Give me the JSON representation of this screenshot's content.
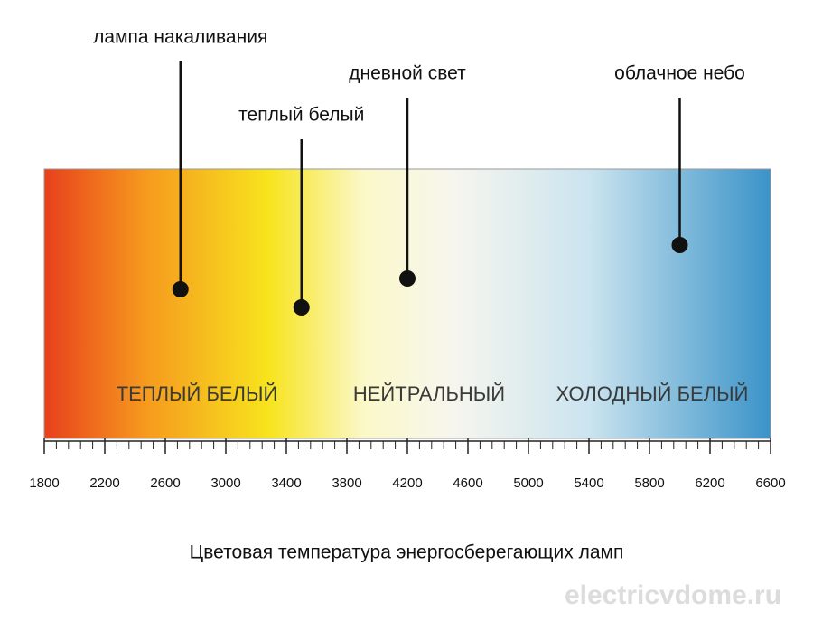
{
  "chart_data": {
    "type": "scale",
    "title": "Цветовая температура энергосберегающих ламп",
    "xlim": [
      1800,
      6600
    ],
    "xticks": [
      1800,
      2200,
      2600,
      3000,
      3400,
      3800,
      4200,
      4600,
      5000,
      5400,
      5800,
      6200,
      6600
    ],
    "minor_xticks": [
      1800,
      1880,
      1960,
      2040,
      2120,
      2200,
      2280,
      2360,
      2440,
      2520,
      2600,
      2680,
      2760,
      2840,
      2920,
      3000,
      3080,
      3160,
      3240,
      3320,
      3400,
      3480,
      3560,
      3640,
      3720,
      3800,
      3880,
      3960,
      4040,
      4120,
      4200,
      4280,
      4360,
      4440,
      4520,
      4600,
      4680,
      4760,
      4840,
      4920,
      5000,
      5080,
      5160,
      5240,
      5320,
      5400,
      5480,
      5560,
      5640,
      5720,
      5800,
      5880,
      5960,
      6040,
      6120,
      6200,
      6280,
      6360,
      6440,
      6520,
      6600
    ],
    "markers": [
      {
        "label": "лампа накаливания",
        "x": 2700
      },
      {
        "label": "теплый белый",
        "x": 3500
      },
      {
        "label": "дневной свет",
        "x": 4200
      },
      {
        "label": "облачное небо",
        "x": 6000
      }
    ],
    "regions": [
      "ТЕПЛЫЙ БЕЛЫЙ",
      "НЕЙТРАЛЬНЫЙ",
      "ХОЛОДНЫЙ БЕЛЫЙ"
    ],
    "watermark": "electricvdome.ru"
  }
}
